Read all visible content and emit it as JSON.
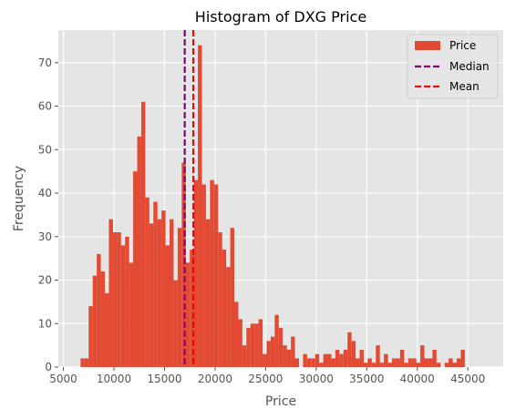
{
  "chart_data": {
    "type": "bar",
    "title": "Histogram of DXG Price",
    "xlabel": "Price",
    "ylabel": "Frequency",
    "xlim": [
      4500,
      48500
    ],
    "ylim": [
      0,
      77.5
    ],
    "x_ticks": [
      5000,
      10000,
      15000,
      20000,
      25000,
      30000,
      35000,
      40000,
      45000
    ],
    "y_ticks": [
      0,
      10,
      20,
      30,
      40,
      50,
      60,
      70
    ],
    "x_tick_labels": [
      "5000",
      "10000",
      "15000",
      "20000",
      "25000",
      "30000",
      "35000",
      "40000",
      "45000"
    ],
    "y_tick_labels": [
      "0",
      "10",
      "20",
      "30",
      "40",
      "50",
      "60",
      "70"
    ],
    "grid": true,
    "legend_position": "top-right",
    "bin_start": 6700,
    "bin_width": 400,
    "series": [
      {
        "name": "Price",
        "values": [
          2,
          2,
          14,
          21,
          26,
          22,
          17,
          34,
          31,
          31,
          28,
          30,
          24,
          45,
          53,
          61,
          39,
          33,
          38,
          34,
          36,
          28,
          34,
          20,
          32,
          47,
          24,
          27,
          43,
          74,
          42,
          34,
          43,
          42,
          31,
          27,
          23,
          32,
          15,
          11,
          5,
          9,
          10,
          10,
          11,
          3,
          6,
          7,
          12,
          9,
          5,
          4,
          7,
          2,
          0,
          3,
          2,
          2,
          3,
          1,
          3,
          3,
          2,
          4,
          3,
          4,
          8,
          6,
          2,
          4,
          1,
          2,
          1,
          5,
          1,
          3,
          1,
          2,
          2,
          4,
          1,
          2,
          2,
          1,
          5,
          2,
          2,
          4,
          1,
          0,
          1,
          2,
          1,
          2,
          4
        ]
      }
    ],
    "vlines": [
      {
        "name": "Median",
        "x": 17000,
        "color": "#800080",
        "style": "dashed"
      },
      {
        "name": "Mean",
        "x": 17850,
        "color": "#ff0000",
        "style": "dashed"
      }
    ],
    "colors": {
      "bar": "#e24a33",
      "plot_bg": "#e5e5e5",
      "grid": "#ffffff",
      "tick_text": "#555555"
    }
  }
}
